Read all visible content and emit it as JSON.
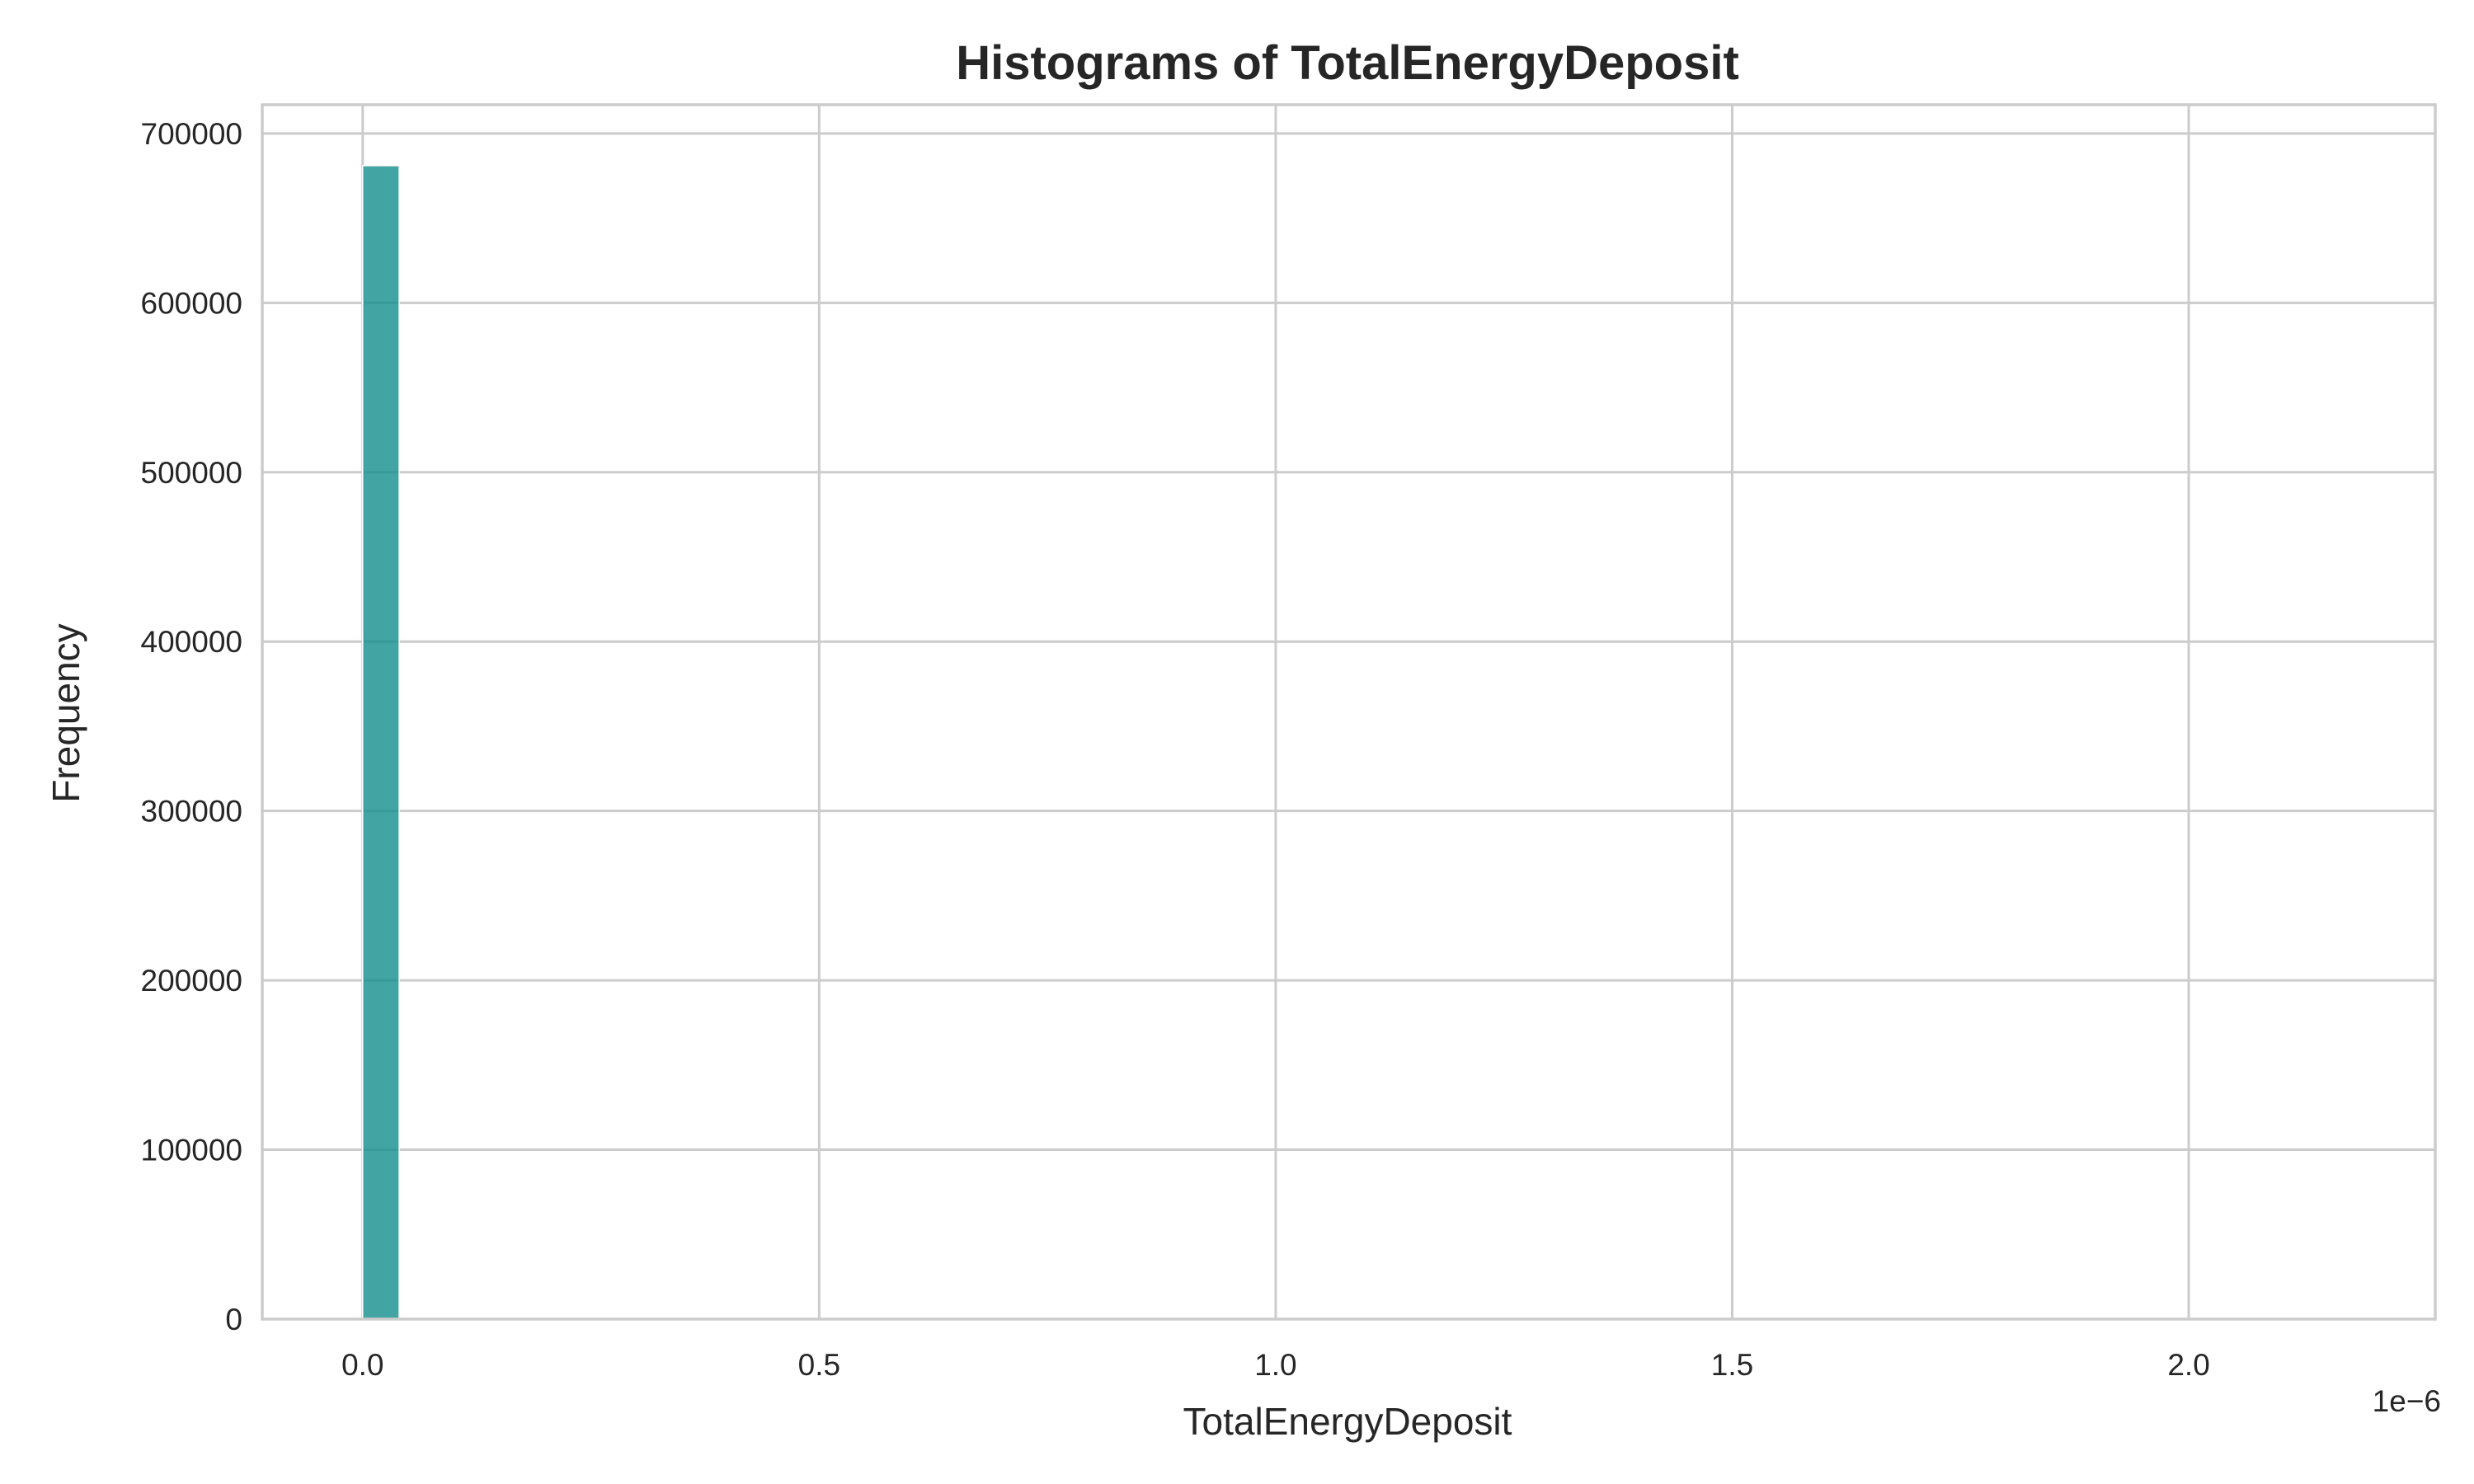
{
  "chart_data": {
    "type": "bar",
    "subtype": "histogram",
    "title": "Histograms of TotalEnergyDeposit",
    "xlabel": "TotalEnergyDeposit",
    "ylabel": "Frequency",
    "x_offset_text": "1e−6",
    "x_scale_factor": 1e-06,
    "xlim": [
      -0.11,
      2.27
    ],
    "ylim": [
      0,
      717000
    ],
    "x_ticks": [
      {
        "value": 0.0,
        "label": "0.0"
      },
      {
        "value": 0.5,
        "label": "0.5"
      },
      {
        "value": 1.0,
        "label": "1.0"
      },
      {
        "value": 1.5,
        "label": "1.5"
      },
      {
        "value": 2.0,
        "label": "2.0"
      }
    ],
    "y_ticks": [
      {
        "value": 0,
        "label": "0"
      },
      {
        "value": 100000,
        "label": "100000"
      },
      {
        "value": 200000,
        "label": "200000"
      },
      {
        "value": 300000,
        "label": "300000"
      },
      {
        "value": 400000,
        "label": "400000"
      },
      {
        "value": 500000,
        "label": "500000"
      },
      {
        "value": 600000,
        "label": "600000"
      },
      {
        "value": 700000,
        "label": "700000"
      }
    ],
    "bins": [
      {
        "x0": 0.0,
        "x1": 0.04,
        "count": 681000
      }
    ],
    "grid": true,
    "bar_color": "#148f8c",
    "bar_opacity": 0.8,
    "bar_edge_color": "#ffffff"
  }
}
